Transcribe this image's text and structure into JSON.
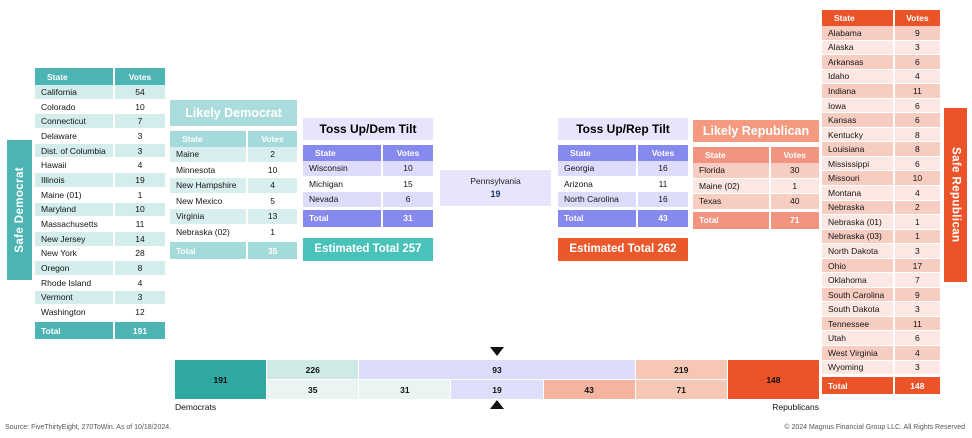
{
  "chart_data": {
    "type": "table",
    "tables": {
      "safe_democrat": {
        "title": "Safe Democrat",
        "columns": [
          "State",
          "Votes"
        ],
        "rows": [
          [
            "California",
            54
          ],
          [
            "Colorado",
            10
          ],
          [
            "Connecticut",
            7
          ],
          [
            "Delaware",
            3
          ],
          [
            "Dist. of Columbia",
            3
          ],
          [
            "Hawaii",
            4
          ],
          [
            "Illinois",
            19
          ],
          [
            "Maine (01)",
            1
          ],
          [
            "Maryland",
            10
          ],
          [
            "Massachusetts",
            11
          ],
          [
            "New Jersey",
            14
          ],
          [
            "New York",
            28
          ],
          [
            "Oregon",
            8
          ],
          [
            "Rhode Island",
            4
          ],
          [
            "Vermont",
            3
          ],
          [
            "Washington",
            12
          ]
        ],
        "total_label": "Total",
        "total": 191
      },
      "likely_democrat": {
        "title": "Likely Democrat",
        "columns": [
          "State",
          "Votes"
        ],
        "rows": [
          [
            "Maine",
            2
          ],
          [
            "Minnesota",
            10
          ],
          [
            "New Hampshire",
            4
          ],
          [
            "New Mexico",
            5
          ],
          [
            "Virginia",
            13
          ],
          [
            "Nebraska (02)",
            1
          ]
        ],
        "total_label": "Total",
        "total": 35
      },
      "tossup_dem_tilt": {
        "title": "Toss Up/Dem Tilt",
        "columns": [
          "State",
          "Votes"
        ],
        "rows": [
          [
            "Wisconsin",
            10
          ],
          [
            "Michigan",
            15
          ],
          [
            "Nevada",
            6
          ]
        ],
        "total_label": "Total",
        "total": 31,
        "estimated_total_label": "Estimated Total 257"
      },
      "pennsylvania": {
        "state": "Pennsylvania",
        "votes": 19
      },
      "tossup_rep_tilt": {
        "title": "Toss Up/Rep Tilt",
        "columns": [
          "State",
          "Votes"
        ],
        "rows": [
          [
            "Georgia",
            16
          ],
          [
            "Arizona",
            11
          ],
          [
            "North Carolina",
            16
          ]
        ],
        "total_label": "Total",
        "total": 43,
        "estimated_total_label": "Estimated Total 262"
      },
      "likely_republican": {
        "title": "Likely Republican",
        "columns": [
          "State",
          "Votes"
        ],
        "rows": [
          [
            "Florida",
            30
          ],
          [
            "Maine (02)",
            1
          ],
          [
            "Texas",
            40
          ]
        ],
        "total_label": "Total",
        "total": 71
      },
      "safe_republican": {
        "title": "Safe Republican",
        "columns": [
          "State",
          "Votes"
        ],
        "rows": [
          [
            "Alabama",
            9
          ],
          [
            "Alaska",
            3
          ],
          [
            "Arkansas",
            6
          ],
          [
            "Idaho",
            4
          ],
          [
            "Indiana",
            11
          ],
          [
            "Iowa",
            6
          ],
          [
            "Kansas",
            6
          ],
          [
            "Kentucky",
            8
          ],
          [
            "Louisiana",
            8
          ],
          [
            "Mississippi",
            6
          ],
          [
            "Missouri",
            10
          ],
          [
            "Montana",
            4
          ],
          [
            "Nebraska",
            2
          ],
          [
            "Nebraska (01)",
            1
          ],
          [
            "Nebraska (03)",
            1
          ],
          [
            "North Dakota",
            3
          ],
          [
            "Ohio",
            17
          ],
          [
            "Oklahoma",
            7
          ],
          [
            "South Carolina",
            9
          ],
          [
            "South Dakota",
            3
          ],
          [
            "Tennessee",
            11
          ],
          [
            "Utah",
            6
          ],
          [
            "West Virginia",
            4
          ],
          [
            "Wyoming",
            3
          ]
        ],
        "total_label": "Total",
        "total": 148
      }
    },
    "stacked_bar": {
      "left_label": "Democrats",
      "right_label": "Republicans",
      "top_row": [
        191,
        226,
        93,
        219,
        148
      ],
      "bottom_row": [
        35,
        31,
        19,
        43,
        71
      ]
    }
  },
  "footer": {
    "source": "Source: FiveThirtyEight, 270ToWin. As of 10/18/2024.",
    "copyright": "© 2024 Magnus Financial Group LLC. All Rights Reserved"
  },
  "colors": {
    "safe_dem_teal": "#4db4b4",
    "dem_block_teal": "#2fa8a2",
    "light_teal_row": "#d3ecec",
    "likely_dem_teal": "#aadcdc",
    "tossup_periwinkle": "#8689ee",
    "lavender_row": "#dddcfa",
    "tossup_title_bg": "#e6e5fb",
    "estimated_dem_teal": "#49c2ba",
    "estimated_rep_orange": "#ea582b",
    "safe_rep_orange": "#ea5428",
    "likely_rep_salmon": "#f39480",
    "salmon_row": "#f7cdc2",
    "light_salmon_row": "#fce8e2"
  }
}
